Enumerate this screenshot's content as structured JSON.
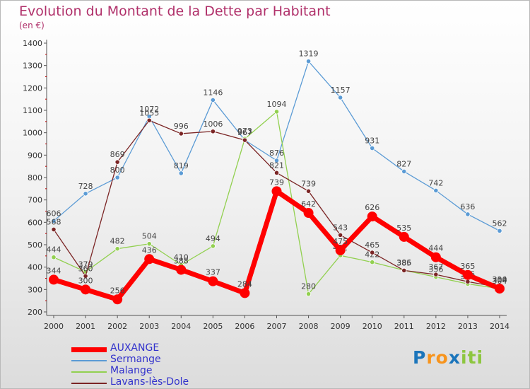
{
  "title": "Evolution du Montant de la Dette par Habitant",
  "unit": "(en €)",
  "logo": {
    "letters": [
      "P",
      "r",
      "o",
      "x",
      "i",
      "t",
      "i"
    ],
    "colors": [
      "#1b75bb",
      "#f7941d",
      "#f7941d",
      "#1b75bb",
      "#8dc63f",
      "#8dc63f",
      "#8dc63f"
    ]
  },
  "chart_data": {
    "type": "line",
    "title": "Evolution du Montant de la Dette par Habitant",
    "ylabel": "(en €)",
    "x": [
      "2000",
      "2001",
      "2002",
      "2003",
      "2004",
      "2005",
      "2006",
      "2007",
      "2008",
      "2009",
      "2010",
      "2011",
      "2012",
      "2013",
      "2014"
    ],
    "yticks": [
      "200",
      "300",
      "400",
      "500",
      "600",
      "700",
      "800",
      "900",
      "1000",
      "1100",
      "1200",
      "1300",
      "1400"
    ],
    "ylim": [
      200,
      1400
    ],
    "grid": false,
    "legend": "bottom-left",
    "series": [
      {
        "name": "Sermange",
        "color": "#5b9bd5",
        "values": [
          606,
          728,
          800,
          1072,
          819,
          1146,
          967,
          876,
          1319,
          1157,
          931,
          827,
          742,
          636,
          562
        ],
        "labels": [
          "606",
          "728",
          "800",
          "1072",
          "819",
          "1146",
          "967",
          "876",
          "1319",
          "1157",
          "931",
          "827",
          "742",
          "636",
          "562"
        ]
      },
      {
        "name": "Malange",
        "color": "#92d050",
        "values": [
          444,
          379,
          482,
          504,
          410,
          494,
          973,
          1094,
          280,
          452,
          422,
          386,
          356,
          325,
          304
        ],
        "labels": [
          "444",
          "379",
          "482",
          "504",
          "410",
          "494",
          "973",
          "1094",
          "280",
          "452",
          "422",
          "386",
          "356",
          "325",
          "304"
        ]
      },
      {
        "name": "Lavans-lès-Dole",
        "color": "#7b2525",
        "values": [
          568,
          360,
          869,
          1055,
          996,
          1006,
          967,
          821,
          739,
          543,
          465,
          385,
          367,
          335,
          310
        ],
        "labels": [
          "568",
          "360",
          "869",
          "1055",
          "996",
          "1006",
          "967",
          "821",
          "739",
          "543",
          "465",
          "385",
          "367",
          "335",
          "310"
        ]
      },
      {
        "name": "AUXANGE",
        "color": "#ff0000",
        "values": [
          344,
          300,
          256,
          436,
          388,
          337,
          284,
          739,
          642,
          475,
          626,
          535,
          444,
          365,
          304
        ],
        "labels": [
          "344",
          "300",
          "256",
          "436",
          "388",
          "337",
          "284",
          "739",
          "642",
          "475",
          "626",
          "535",
          "444",
          "365",
          "304"
        ]
      }
    ],
    "legend_order": [
      "AUXANGE",
      "Sermange",
      "Malange",
      "Lavans-lès-Dole"
    ]
  }
}
